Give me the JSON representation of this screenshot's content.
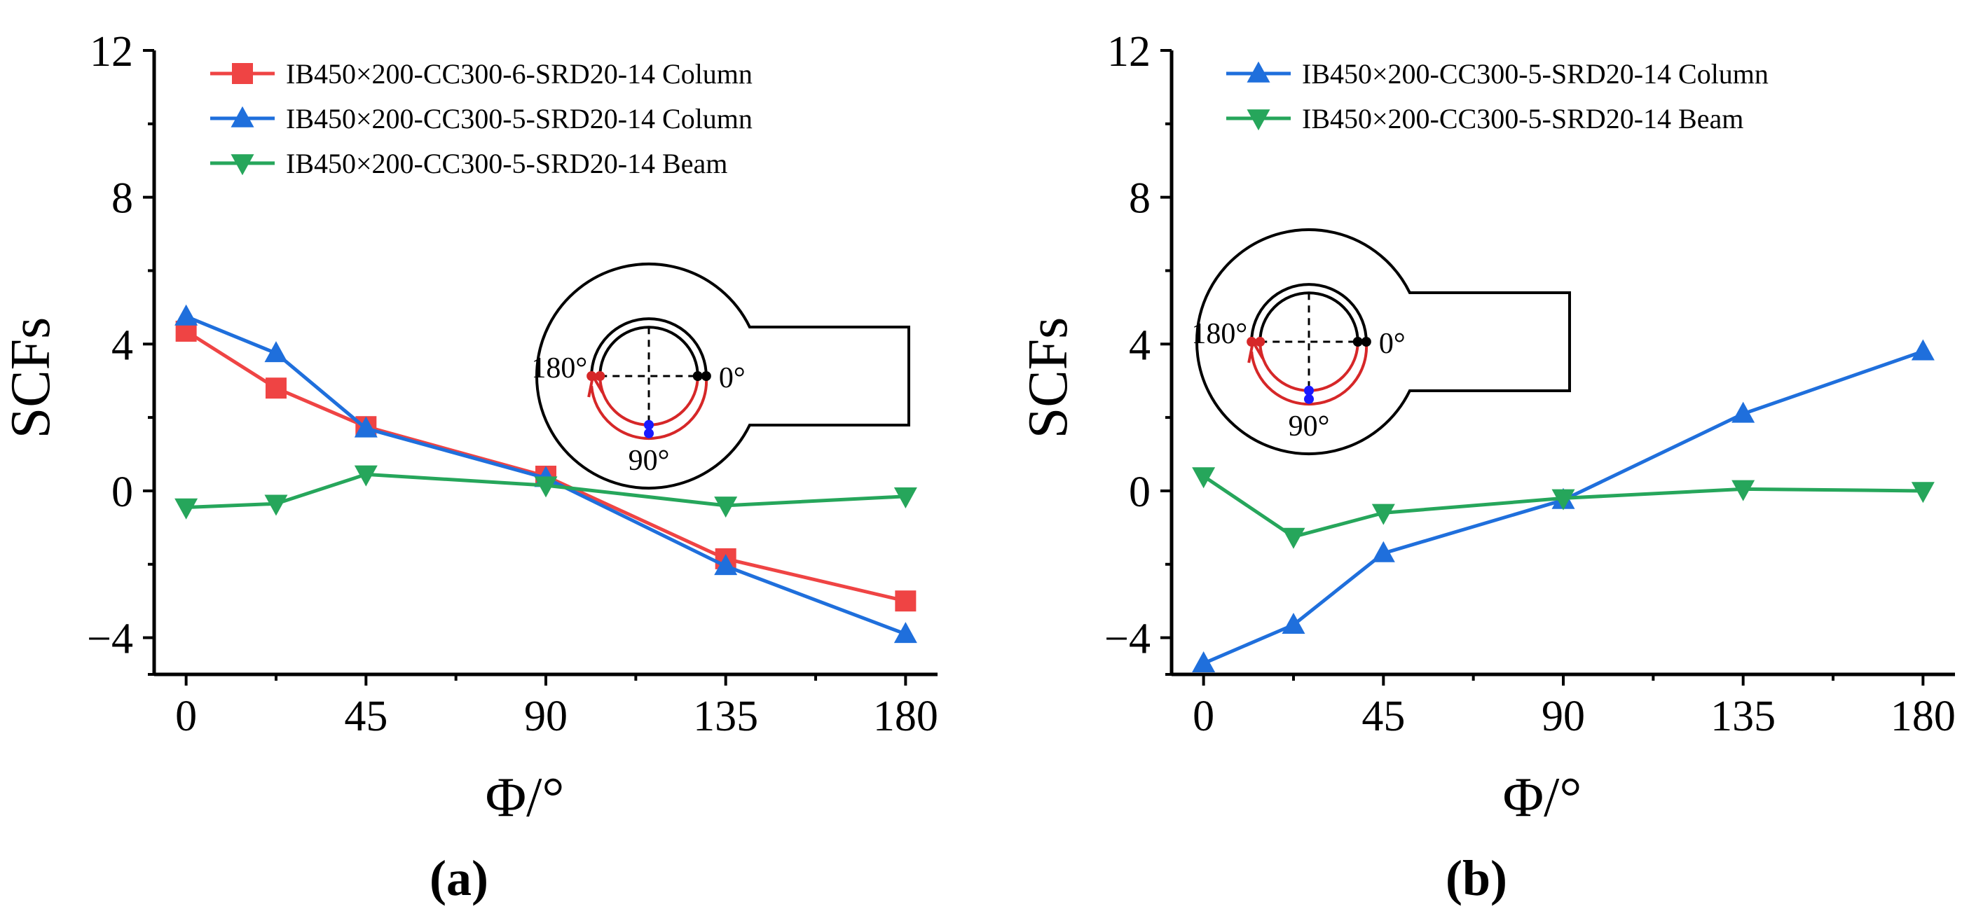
{
  "chart_data": [
    {
      "type": "line",
      "panel_label": "(a)",
      "panel_letter": "a",
      "xlabel": "Φ/°",
      "ylabel": "SCFs",
      "xlim": [
        -8,
        188
      ],
      "ylim": [
        -5,
        12
      ],
      "xticks": [
        0,
        45,
        90,
        135,
        180
      ],
      "xtick_labels": [
        "0",
        "45",
        "90",
        "135",
        "180"
      ],
      "yticks": [
        -4,
        0,
        4,
        8,
        12
      ],
      "ytick_labels": [
        "−4",
        "0",
        "4",
        "8",
        "12"
      ],
      "legend_position": "top-left",
      "series": [
        {
          "name": "IB450×200-CC300-6-SRD20-14 Column",
          "color": "#ef4444",
          "marker": "square",
          "x": [
            0,
            22.5,
            45,
            90,
            135,
            180
          ],
          "values": [
            4.35,
            2.8,
            1.75,
            0.4,
            -1.85,
            -3.0
          ]
        },
        {
          "name": "IB450×200-CC300-5-SRD20-14 Column",
          "color": "#1f6fdc",
          "marker": "triangle-up",
          "x": [
            0,
            22.5,
            45,
            90,
            135,
            180
          ],
          "values": [
            4.75,
            3.75,
            1.7,
            0.35,
            -2.05,
            -3.9
          ]
        },
        {
          "name": "IB450×200-CC300-5-SRD20-14 Beam",
          "color": "#26a65b",
          "marker": "triangle-down",
          "x": [
            0,
            22.5,
            45,
            90,
            135,
            180
          ],
          "values": [
            -0.45,
            -0.35,
            0.45,
            0.15,
            -0.4,
            -0.15
          ]
        }
      ],
      "inset": {
        "labels": {
          "zero": "0°",
          "ninety": "90°",
          "one_eighty": "180°"
        },
        "colors": {
          "outline": "#000000",
          "red_arc": "#d62728",
          "blue_point": "#1a1aff"
        }
      }
    },
    {
      "type": "line",
      "panel_label": "(b)",
      "panel_letter": "b",
      "xlabel": "Φ/°",
      "ylabel": "SCFs",
      "xlim": [
        -8,
        188
      ],
      "ylim": [
        -5,
        12
      ],
      "xticks": [
        0,
        45,
        90,
        135,
        180
      ],
      "xtick_labels": [
        "0",
        "45",
        "90",
        "135",
        "180"
      ],
      "yticks": [
        -4,
        0,
        4,
        8,
        12
      ],
      "ytick_labels": [
        "−4",
        "0",
        "4",
        "8",
        "12"
      ],
      "legend_position": "top-left",
      "series": [
        {
          "name": "IB450×200-CC300-5-SRD20-14 Column",
          "color": "#1f6fdc",
          "marker": "triangle-up",
          "x": [
            0,
            22.5,
            45,
            90,
            135,
            180
          ],
          "values": [
            -4.7,
            -3.65,
            -1.7,
            -0.25,
            2.1,
            3.8
          ]
        },
        {
          "name": "IB450×200-CC300-5-SRD20-14 Beam",
          "color": "#26a65b",
          "marker": "triangle-down",
          "x": [
            0,
            22.5,
            45,
            90,
            135,
            180
          ],
          "values": [
            0.4,
            -1.25,
            -0.6,
            -0.2,
            0.05,
            0.0
          ]
        }
      ],
      "inset": {
        "labels": {
          "zero": "0°",
          "ninety": "90°",
          "one_eighty": "180°"
        },
        "colors": {
          "outline": "#000000",
          "red_arc": "#d62728",
          "blue_point": "#1a1aff"
        }
      }
    }
  ]
}
